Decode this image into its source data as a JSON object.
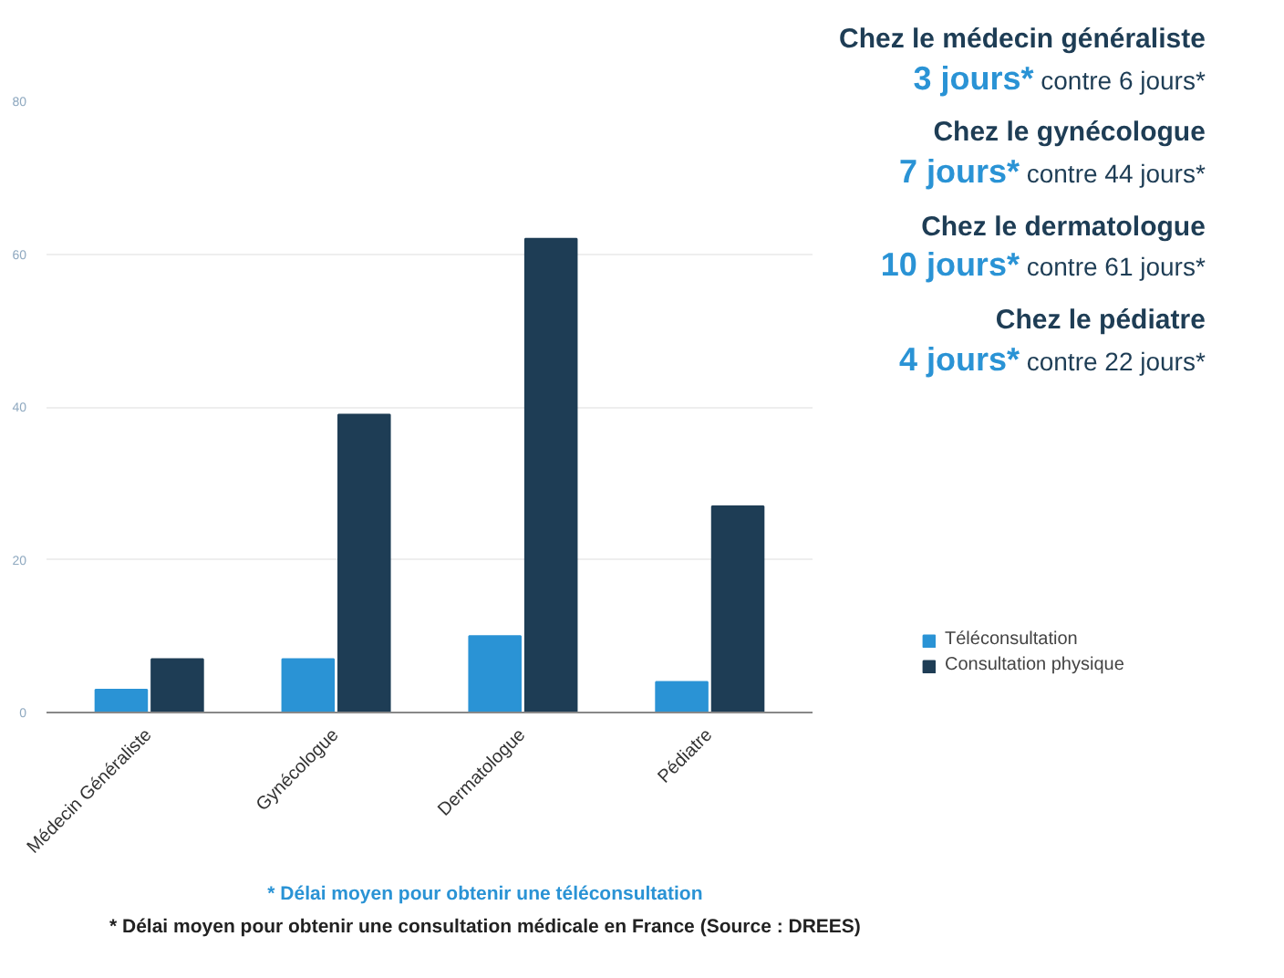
{
  "chart_data": {
    "type": "bar",
    "categories": [
      "Médecin Généraliste",
      "Gynécologue",
      "Dermatologue",
      "Pédiatre"
    ],
    "series": [
      {
        "name": "Téléconsultation",
        "color": "#2a93d5",
        "values": [
          3,
          7,
          10,
          4
        ]
      },
      {
        "name": "Consultation physique",
        "color": "#1e3d55",
        "values": [
          7,
          39,
          62,
          27
        ]
      }
    ],
    "ylim": [
      0,
      80
    ],
    "yticks": [
      0,
      20,
      40,
      60,
      80
    ],
    "grid": "y",
    "legend": "right",
    "annotations": [
      "Chez le médecin généraliste",
      "3 jours* contre 6 jours*",
      "Chez le gynécologue",
      "7 jours* contre 44 jours*",
      "Chez le dermatologue",
      "10 jours* contre 61 jours*",
      "Chez le pédiatre",
      "4 jours* contre 22 jours*",
      "* Délai moyen pour obtenir une téléconsultation",
      "* Délai moyen pour obtenir une consultation médicale en France (Source : DREES)"
    ]
  }
}
